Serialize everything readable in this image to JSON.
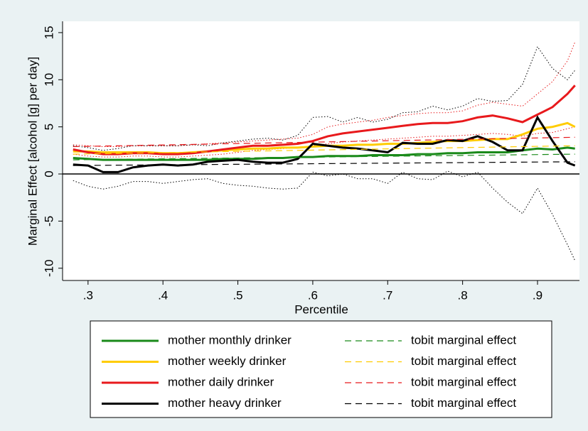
{
  "chart_data": {
    "type": "line",
    "xlabel": "Percentile",
    "ylabel": "Marginal Effect [alcohol [g] per day]",
    "xlim": [
      0.266,
      0.956
    ],
    "ylim": [
      -11.3,
      16.2
    ],
    "xticks": [
      {
        "value": 0.3,
        "label": ".3"
      },
      {
        "value": 0.4,
        "label": ".4"
      },
      {
        "value": 0.5,
        "label": ".5"
      },
      {
        "value": 0.6,
        "label": ".6"
      },
      {
        "value": 0.7,
        "label": ".7"
      },
      {
        "value": 0.8,
        "label": ".8"
      },
      {
        "value": 0.9,
        "label": ".9"
      }
    ],
    "yticks": [
      -10,
      -5,
      0,
      5,
      10,
      15
    ],
    "legend": "bottom",
    "x": [
      0.28,
      0.3,
      0.32,
      0.34,
      0.36,
      0.38,
      0.4,
      0.42,
      0.44,
      0.46,
      0.48,
      0.5,
      0.52,
      0.54,
      0.56,
      0.58,
      0.6,
      0.62,
      0.64,
      0.66,
      0.68,
      0.7,
      0.72,
      0.74,
      0.76,
      0.78,
      0.8,
      0.82,
      0.84,
      0.86,
      0.88,
      0.9,
      0.92,
      0.94,
      0.95
    ],
    "series": [
      {
        "name": "mother monthly drinker",
        "color": "#1a8a1a",
        "dash": false,
        "values": [
          1.7,
          1.6,
          1.5,
          1.5,
          1.5,
          1.5,
          1.5,
          1.5,
          1.5,
          1.5,
          1.6,
          1.6,
          1.6,
          1.7,
          1.7,
          1.8,
          1.8,
          1.9,
          1.9,
          1.9,
          2.0,
          2.0,
          2.0,
          2.1,
          2.1,
          2.2,
          2.2,
          2.3,
          2.3,
          2.3,
          2.5,
          2.7,
          2.6,
          2.8,
          2.7
        ]
      },
      {
        "name": "mother weekly drinker",
        "color": "#ffcc00",
        "dash": false,
        "values": [
          2.4,
          2.4,
          2.3,
          2.3,
          2.3,
          2.3,
          2.2,
          2.2,
          2.3,
          2.4,
          2.5,
          2.6,
          2.7,
          2.7,
          2.8,
          2.8,
          2.9,
          3.0,
          3.0,
          3.1,
          3.1,
          3.2,
          3.2,
          3.3,
          3.4,
          3.5,
          3.5,
          3.6,
          3.7,
          3.7,
          4.2,
          4.8,
          5.0,
          5.4,
          5.0
        ]
      },
      {
        "name": "mother daily drinker",
        "color": "#e8191c",
        "dash": false,
        "values": [
          2.6,
          2.3,
          2.1,
          2.1,
          2.2,
          2.2,
          2.1,
          2.1,
          2.2,
          2.4,
          2.6,
          2.8,
          3.0,
          3.0,
          3.1,
          3.2,
          3.5,
          4.0,
          4.3,
          4.5,
          4.7,
          4.9,
          5.1,
          5.3,
          5.4,
          5.4,
          5.6,
          6.0,
          6.2,
          5.9,
          5.5,
          6.3,
          7.1,
          8.5,
          9.4
        ]
      },
      {
        "name": "mother heavy drinker",
        "color": "#000000",
        "dash": false,
        "values": [
          1.0,
          0.9,
          0.2,
          0.2,
          0.7,
          0.9,
          1.0,
          0.9,
          1.0,
          1.3,
          1.4,
          1.5,
          1.3,
          1.2,
          1.2,
          1.6,
          3.2,
          3.0,
          2.8,
          2.7,
          2.5,
          2.3,
          3.3,
          3.2,
          3.2,
          3.6,
          3.5,
          4.0,
          3.4,
          2.5,
          2.5,
          6.0,
          3.5,
          1.2,
          0.9
        ]
      },
      {
        "name": "tobit marginal effect",
        "color": "#1a8a1a",
        "dash": true,
        "x": [
          0.28,
          0.95
        ],
        "values": [
          1.5,
          2.1
        ]
      },
      {
        "name": "tobit marginal effect",
        "color": "#ffcc00",
        "dash": true,
        "x": [
          0.28,
          0.95
        ],
        "values": [
          2.1,
          3.0
        ]
      },
      {
        "name": "tobit marginal effect",
        "color": "#e8191c",
        "dash": true,
        "x": [
          0.28,
          0.95
        ],
        "values": [
          2.9,
          3.9
        ]
      },
      {
        "name": "tobit marginal effect",
        "color": "#000000",
        "dash": true,
        "x": [
          0.28,
          0.95
        ],
        "values": [
          0.9,
          1.3
        ]
      }
    ],
    "bands": [
      {
        "color": "#e8191c",
        "lower": [
          2.1,
          1.9,
          1.8,
          1.8,
          1.9,
          1.9,
          1.8,
          1.8,
          1.9,
          2.0,
          2.1,
          2.3,
          2.5,
          2.6,
          2.7,
          2.8,
          3.0,
          3.2,
          3.4,
          3.5,
          3.6,
          3.7,
          3.8,
          3.9,
          4.0,
          4.0,
          4.1,
          4.2,
          4.3,
          4.2,
          4.0,
          4.3,
          4.4,
          4.8,
          5.0
        ],
        "upper": [
          3.1,
          3.0,
          2.9,
          2.9,
          3.0,
          3.0,
          3.0,
          3.0,
          3.1,
          3.2,
          3.3,
          3.4,
          3.5,
          3.6,
          3.7,
          3.8,
          4.2,
          5.0,
          5.3,
          5.5,
          5.7,
          6.0,
          6.2,
          6.4,
          6.5,
          6.5,
          6.7,
          7.3,
          7.6,
          7.4,
          7.2,
          8.5,
          9.8,
          12.0,
          14.0
        ]
      },
      {
        "color": "#000000",
        "lower": [
          -0.7,
          -1.3,
          -1.6,
          -1.3,
          -0.8,
          -0.8,
          -1.0,
          -0.8,
          -0.6,
          -0.5,
          -1.0,
          -1.2,
          -1.3,
          -1.5,
          -1.6,
          -1.5,
          0.2,
          -0.2,
          0.0,
          -0.5,
          -0.5,
          -1.0,
          0.2,
          -0.5,
          -0.6,
          0.3,
          -0.3,
          0.2,
          -1.5,
          -3.0,
          -4.2,
          -1.5,
          -4.3,
          -7.5,
          -9.2
        ],
        "upper": [
          3.0,
          2.8,
          2.5,
          2.7,
          3.0,
          3.0,
          3.0,
          3.0,
          3.1,
          3.0,
          3.3,
          3.5,
          3.7,
          3.8,
          3.6,
          4.1,
          6.0,
          6.1,
          5.5,
          6.0,
          5.5,
          5.8,
          6.5,
          6.6,
          7.2,
          6.8,
          7.2,
          8.0,
          7.7,
          7.8,
          9.5,
          13.5,
          11.2,
          10.0,
          11.0
        ]
      }
    ]
  }
}
